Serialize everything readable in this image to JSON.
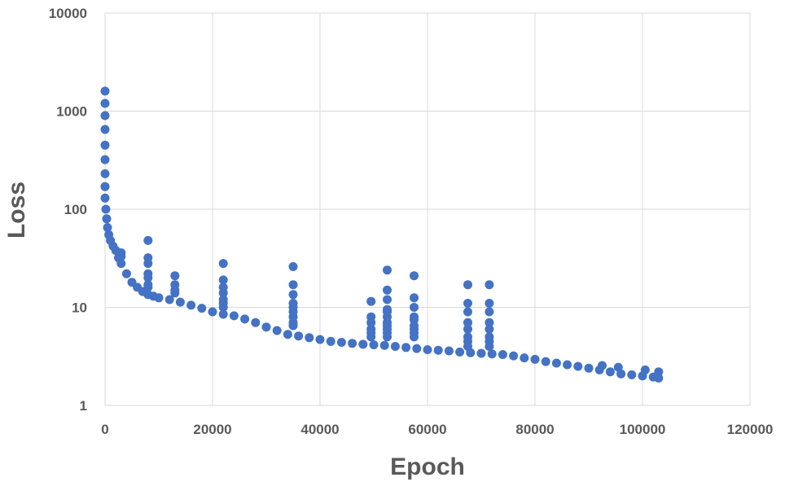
{
  "chart_data": {
    "type": "scatter",
    "title": "",
    "xlabel": "Epoch",
    "ylabel": "Loss",
    "xlim": [
      0,
      120000
    ],
    "ylim": [
      1,
      10000
    ],
    "yscale": "log",
    "grid": true,
    "legend": "none",
    "x_ticks": [
      "0",
      "20000",
      "40000",
      "60000",
      "80000",
      "100000",
      "120000"
    ],
    "y_ticks": [
      "1",
      "10",
      "100",
      "1000",
      "10000"
    ],
    "marker_color": "#4472c4",
    "series": [
      {
        "points": [
          [
            0,
            1600
          ],
          [
            0,
            1200
          ],
          [
            0,
            900
          ],
          [
            0,
            650
          ],
          [
            0,
            450
          ],
          [
            0,
            320
          ],
          [
            0,
            230
          ],
          [
            0,
            170
          ],
          [
            0,
            130
          ],
          [
            150,
            100
          ],
          [
            300,
            80
          ],
          [
            450,
            65
          ],
          [
            700,
            55
          ],
          [
            1000,
            48
          ],
          [
            1500,
            42
          ],
          [
            2000,
            38
          ],
          [
            2500,
            32
          ],
          [
            3000,
            28
          ],
          [
            4000,
            22
          ],
          [
            5000,
            18
          ],
          [
            6000,
            16
          ],
          [
            7000,
            14.5
          ],
          [
            8000,
            13.5
          ],
          [
            9000,
            13
          ],
          [
            10000,
            12.5
          ],
          [
            12000,
            12
          ],
          [
            14000,
            11.3
          ],
          [
            16000,
            10.5
          ],
          [
            18000,
            9.8
          ],
          [
            20000,
            9
          ],
          [
            22000,
            8.5
          ],
          [
            24000,
            8.2
          ],
          [
            26000,
            7.6
          ],
          [
            28000,
            7
          ],
          [
            30000,
            6.3
          ],
          [
            32000,
            5.8
          ],
          [
            34000,
            5.3
          ],
          [
            36000,
            5.1
          ],
          [
            38000,
            4.9
          ],
          [
            40000,
            4.7
          ],
          [
            42000,
            4.5
          ],
          [
            44000,
            4.4
          ],
          [
            46000,
            4.3
          ],
          [
            48000,
            4.2
          ],
          [
            50000,
            4.15
          ],
          [
            52000,
            4.1
          ],
          [
            54000,
            4.0
          ],
          [
            56000,
            3.9
          ],
          [
            58000,
            3.8
          ],
          [
            60000,
            3.7
          ],
          [
            62000,
            3.65
          ],
          [
            64000,
            3.6
          ],
          [
            66000,
            3.5
          ],
          [
            68000,
            3.45
          ],
          [
            70000,
            3.4
          ],
          [
            72000,
            3.35
          ],
          [
            74000,
            3.3
          ],
          [
            76000,
            3.2
          ],
          [
            78000,
            3.05
          ],
          [
            80000,
            2.95
          ],
          [
            82000,
            2.8
          ],
          [
            84000,
            2.7
          ],
          [
            86000,
            2.6
          ],
          [
            88000,
            2.5
          ],
          [
            90000,
            2.4
          ],
          [
            92000,
            2.3
          ],
          [
            94000,
            2.2
          ],
          [
            96000,
            2.1
          ],
          [
            98000,
            2.05
          ],
          [
            100000,
            2.0
          ],
          [
            102000,
            1.95
          ],
          [
            103000,
            1.9
          ],
          [
            3000,
            36
          ],
          [
            3000,
            33
          ],
          [
            8000,
            48
          ],
          [
            8000,
            32
          ],
          [
            8000,
            28
          ],
          [
            8000,
            22
          ],
          [
            8000,
            20
          ],
          [
            8000,
            17
          ],
          [
            8000,
            16
          ],
          [
            13000,
            21
          ],
          [
            13000,
            17
          ],
          [
            13000,
            15
          ],
          [
            13000,
            14
          ],
          [
            22000,
            28
          ],
          [
            22000,
            19
          ],
          [
            22000,
            16
          ],
          [
            22000,
            14
          ],
          [
            22000,
            12
          ],
          [
            22000,
            11
          ],
          [
            22000,
            10
          ],
          [
            35000,
            26
          ],
          [
            35000,
            17
          ],
          [
            35000,
            13.5
          ],
          [
            35000,
            11
          ],
          [
            35000,
            10
          ],
          [
            35000,
            9
          ],
          [
            35000,
            8
          ],
          [
            35000,
            7
          ],
          [
            35000,
            6.5
          ],
          [
            49500,
            11.5
          ],
          [
            49500,
            8
          ],
          [
            49500,
            7
          ],
          [
            49500,
            6
          ],
          [
            49500,
            5.5
          ],
          [
            49500,
            5
          ],
          [
            52500,
            24
          ],
          [
            52500,
            15
          ],
          [
            52500,
            12
          ],
          [
            52500,
            9.5
          ],
          [
            52500,
            9
          ],
          [
            52500,
            8
          ],
          [
            52500,
            7
          ],
          [
            52500,
            6.5
          ],
          [
            52500,
            6
          ],
          [
            52500,
            5.5
          ],
          [
            52500,
            5
          ],
          [
            57500,
            21
          ],
          [
            57500,
            12.5
          ],
          [
            57500,
            10
          ],
          [
            57500,
            8
          ],
          [
            57500,
            7.5
          ],
          [
            57500,
            6.5
          ],
          [
            57500,
            6
          ],
          [
            57500,
            5.5
          ],
          [
            57500,
            5
          ],
          [
            67500,
            17
          ],
          [
            67500,
            11
          ],
          [
            67500,
            9
          ],
          [
            67500,
            7
          ],
          [
            67500,
            6
          ],
          [
            67500,
            5
          ],
          [
            67500,
            4.5
          ],
          [
            67500,
            4
          ],
          [
            71500,
            17
          ],
          [
            71500,
            11
          ],
          [
            71500,
            9
          ],
          [
            71500,
            7
          ],
          [
            71500,
            6
          ],
          [
            71500,
            5
          ],
          [
            71500,
            4.5
          ],
          [
            71500,
            4
          ],
          [
            92500,
            2.55
          ],
          [
            95500,
            2.45
          ],
          [
            100500,
            2.3
          ],
          [
            103000,
            2.2
          ]
        ]
      }
    ]
  }
}
